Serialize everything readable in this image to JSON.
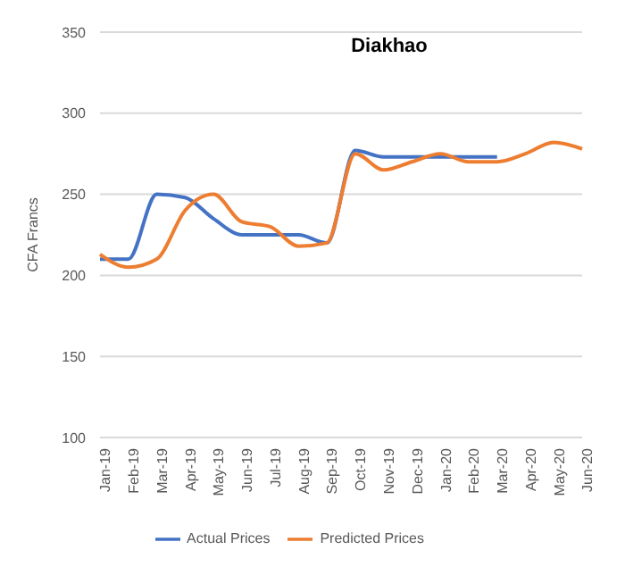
{
  "chart_data": {
    "type": "line",
    "title": "Diakhao",
    "ylabel": "CFA Francs",
    "categories": [
      "Jan-19",
      "Feb-19",
      "Mar-19",
      "Apr-19",
      "May-19",
      "Jun-19",
      "Jul-19",
      "Aug-19",
      "Sep-19",
      "Oct-19",
      "Nov-19",
      "Dec-19",
      "Jan-20",
      "Feb-20",
      "Mar-20",
      "Apr-20",
      "May-20",
      "Jun-20"
    ],
    "series": [
      {
        "name": "Actual Prices",
        "color": "#4472c4",
        "values": [
          210,
          210,
          250,
          248,
          235,
          225,
          225,
          225,
          220,
          277,
          273,
          273,
          273,
          273,
          273,
          null,
          null,
          null
        ]
      },
      {
        "name": "Predicted Prices",
        "color": "#ed7d31",
        "values": [
          213,
          205,
          210,
          240,
          250,
          233,
          230,
          218,
          220,
          275,
          265,
          270,
          275,
          270,
          270,
          275,
          282,
          278
        ]
      }
    ],
    "ylim": [
      100,
      350
    ],
    "yticks": [
      100,
      150,
      200,
      250,
      300,
      350
    ],
    "grid": "y",
    "legend": "bottom",
    "marker": "none",
    "line_style": "solid"
  }
}
